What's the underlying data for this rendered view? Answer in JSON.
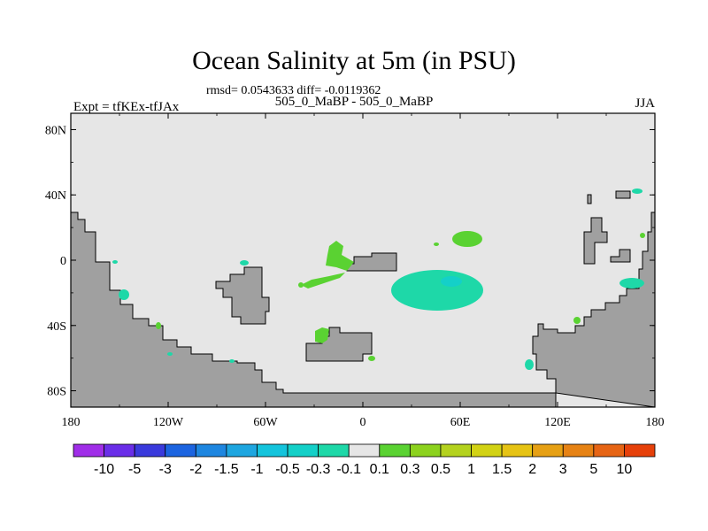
{
  "title": "Ocean Salinity at 5m (in PSU)",
  "stats": "rmsd= 0.0543633 diff= -0.0119362",
  "left_string": "Expt = tfKEx-tfJAx",
  "center_string": "505_0_MaBP - 505_0_MaBP",
  "right_string": "JJA",
  "chart_data": {
    "type": "heatmap",
    "projection": "cylindrical-equidistant",
    "xlim": [
      -180,
      180
    ],
    "ylim": [
      -90,
      90
    ],
    "x_ticks": [
      {
        "value": -180,
        "label": "180"
      },
      {
        "value": -120,
        "label": "120W"
      },
      {
        "value": -60,
        "label": "60W"
      },
      {
        "value": 0,
        "label": "0"
      },
      {
        "value": 60,
        "label": "60E"
      },
      {
        "value": 120,
        "label": "120E"
      },
      {
        "value": 180,
        "label": "180"
      }
    ],
    "y_ticks": [
      {
        "value": 80,
        "label": "80N"
      },
      {
        "value": 40,
        "label": "40N"
      },
      {
        "value": 0,
        "label": "0"
      },
      {
        "value": -40,
        "label": "40S"
      },
      {
        "value": -80,
        "label": "80S"
      }
    ],
    "background_color": "#e6e6e6",
    "land_color": "#a0a0a0",
    "colorbar": {
      "labels": [
        "-10",
        "-5",
        "-3",
        "-2",
        "-1.5",
        "-1",
        "-0.5",
        "-0.3",
        "-0.1",
        "0.1",
        "0.3",
        "0.5",
        "1",
        "1.5",
        "2",
        "3",
        "5",
        "10"
      ],
      "colors": [
        "#a02ee8",
        "#6a2ee8",
        "#3a3adc",
        "#1c64e0",
        "#1e86e0",
        "#1ea6e0",
        "#14c4dc",
        "#14d0c8",
        "#1ed8a8",
        "#e6e6e6",
        "#5ad232",
        "#8cd21e",
        "#b4d21e",
        "#d2d214",
        "#e6c314",
        "#e6a014",
        "#e68214",
        "#e66414",
        "#e6400a"
      ]
    },
    "anomalies": [
      {
        "lon": 55,
        "lat": -18,
        "value": -0.2
      },
      {
        "lon": 58,
        "lat": -12,
        "value": -0.5
      },
      {
        "lon": -20,
        "lat": 8,
        "value": 0.2
      },
      {
        "lon": -15,
        "lat": -4,
        "value": 0.2
      },
      {
        "lon": -27,
        "lat": -47,
        "value": 0.2
      },
      {
        "lon": 65,
        "lat": 14,
        "value": 0.2
      },
      {
        "lon": 170,
        "lat": -13,
        "value": -0.2
      },
      {
        "lon": -154,
        "lat": -20,
        "value": -0.2
      },
      {
        "lon": 108,
        "lat": -63,
        "value": -0.2
      },
      {
        "lon": 134,
        "lat": -36,
        "value": 0.2
      },
      {
        "lon": 174,
        "lat": 14,
        "value": 0.2
      },
      {
        "lon": 170,
        "lat": 42,
        "value": -0.2
      }
    ]
  }
}
